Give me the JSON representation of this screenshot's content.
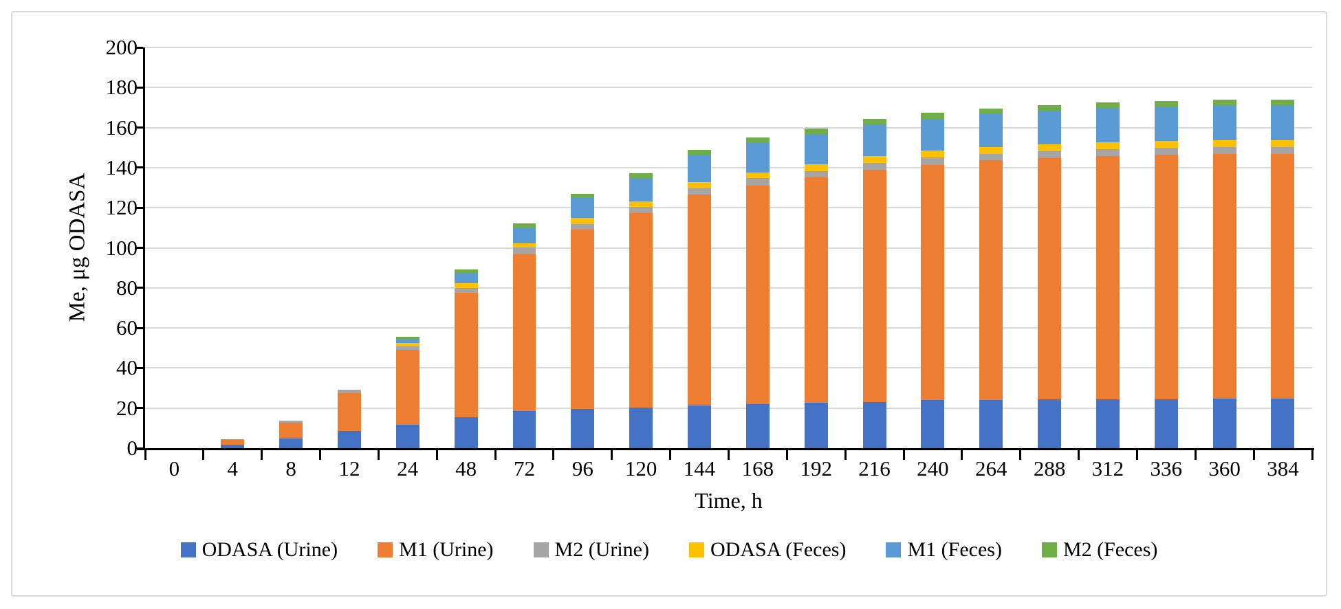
{
  "chart_data": {
    "type": "bar",
    "subtype": "stacked-vertical",
    "title": "",
    "xlabel": "Time, h",
    "ylabel": "Me, μg ODASA",
    "ylim": [
      0,
      200
    ],
    "ytick_step": 20,
    "y_ticks": [
      "0",
      "20",
      "40",
      "60",
      "80",
      "100",
      "120",
      "140",
      "160",
      "180",
      "200"
    ],
    "grid": "horizontal",
    "gridline_color": "#d9d9d9",
    "axis_color": "#000000",
    "legend_position": "bottom",
    "categories": [
      "0",
      "4",
      "8",
      "12",
      "24",
      "48",
      "72",
      "96",
      "120",
      "144",
      "168",
      "192",
      "216",
      "240",
      "264",
      "288",
      "312",
      "336",
      "360",
      "384"
    ],
    "series": [
      {
        "name": "ODASA (Urine)",
        "color": "#4472C4",
        "values": [
          0,
          1.8,
          4.9,
          8.7,
          11.5,
          15.4,
          18.4,
          19.5,
          20.3,
          21.4,
          22.0,
          22.8,
          23.1,
          23.9,
          23.9,
          24.2,
          24.3,
          24.5,
          24.6,
          24.7
        ]
      },
      {
        "name": "M1 (Urine)",
        "color": "#ED7D31",
        "values": [
          0,
          2.6,
          7.9,
          18.8,
          37.7,
          62.0,
          78.2,
          89.6,
          96.9,
          105.1,
          109.2,
          112.3,
          115.8,
          117.5,
          119.8,
          120.6,
          121.4,
          122.1,
          122.2,
          122.3
        ]
      },
      {
        "name": "M2 (Urine)",
        "color": "#A5A5A5",
        "values": [
          0,
          0.2,
          1.0,
          1.7,
          1.7,
          2.7,
          3.6,
          2.8,
          3.3,
          3.2,
          3.6,
          3.0,
          3.4,
          3.7,
          3.3,
          3.4,
          3.4,
          3.3,
          3.4,
          3.4
        ]
      },
      {
        "name": "ODASA (Feces)",
        "color": "#FFC000",
        "values": [
          0,
          0,
          0,
          0,
          1.7,
          2.4,
          2.2,
          3.0,
          2.8,
          3.0,
          2.8,
          3.6,
          3.4,
          3.4,
          3.2,
          3.4,
          3.6,
          3.4,
          3.4,
          3.4
        ]
      },
      {
        "name": "M1 (Feces)",
        "color": "#5B9BD5",
        "values": [
          0,
          0,
          0,
          0,
          1.7,
          4.8,
          7.5,
          9.9,
          11.7,
          13.7,
          14.8,
          15.0,
          15.5,
          15.9,
          16.7,
          16.8,
          16.8,
          17.2,
          17.4,
          17.4
        ]
      },
      {
        "name": "M2 (Feces)",
        "color": "#70AD47",
        "values": [
          0,
          0,
          0,
          0,
          1.4,
          2.0,
          2.4,
          2.2,
          2.3,
          2.6,
          2.7,
          3.0,
          3.0,
          2.9,
          2.6,
          2.8,
          3.1,
          2.8,
          2.9,
          2.9
        ]
      }
    ]
  }
}
